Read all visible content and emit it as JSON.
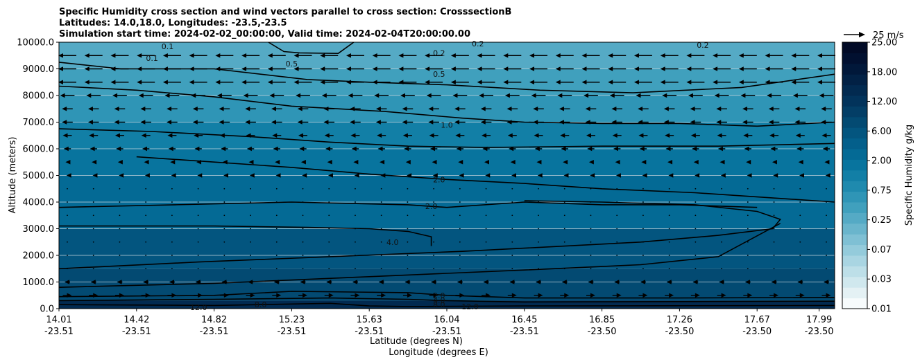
{
  "chart_data": {
    "type": "heatmap",
    "title_lines": [
      "Specific Humidity cross section and wind vectors parallel to cross section: CrosssectionB",
      "Latitudes: 14.0,18.0, Longitudes: -23.5,-23.5",
      "Simulation start time: 2024-02-02_00:00:00, Valid time: 2024-02-04T20:00:00.00"
    ],
    "ylabel": "Altitude (meters)",
    "xlabel_lat": "Latitude (degrees N)",
    "xlabel_lon": "Longitude (degrees E)",
    "ylim": [
      0,
      10000
    ],
    "y_ticks": [
      "0.0",
      "1000.0",
      "2000.0",
      "3000.0",
      "4000.0",
      "5000.0",
      "6000.0",
      "7000.0",
      "8000.0",
      "9000.0",
      "10000.0"
    ],
    "x_ticks": [
      {
        "lat": "14.01",
        "lon": "-23.51",
        "frac": 0.0
      },
      {
        "lat": "14.42",
        "lon": "-23.51",
        "frac": 0.1
      },
      {
        "lat": "14.82",
        "lon": "-23.51",
        "frac": 0.2
      },
      {
        "lat": "15.23",
        "lon": "-23.51",
        "frac": 0.3
      },
      {
        "lat": "15.63",
        "lon": "-23.51",
        "frac": 0.4
      },
      {
        "lat": "16.04",
        "lon": "-23.51",
        "frac": 0.5
      },
      {
        "lat": "16.45",
        "lon": "-23.51",
        "frac": 0.6
      },
      {
        "lat": "16.85",
        "lon": "-23.50",
        "frac": 0.7
      },
      {
        "lat": "17.26",
        "lon": "-23.50",
        "frac": 0.8
      },
      {
        "lat": "17.67",
        "lon": "-23.50",
        "frac": 0.9
      },
      {
        "lat": "17.99",
        "lon": "-23.50",
        "frac": 0.98
      }
    ],
    "colorbar": {
      "label": "Specific Humidity g/kg",
      "levels": [
        "0.01",
        "0.03",
        "0.07",
        "0.25",
        "0.75",
        "2.00",
        "6.00",
        "12.00",
        "18.00",
        "25.00"
      ],
      "colors": [
        "#f7fbfc",
        "#e4f1f4",
        "#d0e8ee",
        "#bddfe8",
        "#a9d5e2",
        "#94cbdb",
        "#7fc0d4",
        "#6ab5cc",
        "#55aac5",
        "#40a0bd",
        "#2f95b6",
        "#1f8aae",
        "#127fa6",
        "#08749e",
        "#046a95",
        "#035f8b",
        "#03557f",
        "#034a72",
        "#033e66",
        "#02335b",
        "#022a50",
        "#022145",
        "#01183a",
        "#011030",
        "#010a26"
      ]
    },
    "wind_key": {
      "label": "25 m/s",
      "value": 25
    },
    "humidity_bands": [
      {
        "alt_from": 0,
        "alt_to": 300,
        "q": 15.0
      },
      {
        "alt_from": 300,
        "alt_to": 1500,
        "q": 7.0
      },
      {
        "alt_from": 1500,
        "alt_to": 3000,
        "q": 5.0
      },
      {
        "alt_from": 3000,
        "alt_to": 4000,
        "q": 3.0
      },
      {
        "alt_from": 4000,
        "alt_to": 5000,
        "q": 2.2
      },
      {
        "alt_from": 5000,
        "alt_to": 6000,
        "q": 1.6
      },
      {
        "alt_from": 6000,
        "alt_to": 7000,
        "q": 1.2
      },
      {
        "alt_from": 7000,
        "alt_to": 8000,
        "q": 0.7
      },
      {
        "alt_from": 8000,
        "alt_to": 9000,
        "q": 0.4
      },
      {
        "alt_from": 9000,
        "alt_to": 10000,
        "q": 0.2
      }
    ],
    "contours": [
      {
        "level": "0.1",
        "points": [
          [
            0.27,
            10000
          ],
          [
            0.29,
            9650
          ],
          [
            0.31,
            9600
          ],
          [
            0.36,
            9580
          ],
          [
            0.38,
            10000
          ]
        ]
      },
      {
        "level": "0.2",
        "points": [
          [
            0.0,
            9250
          ],
          [
            0.08,
            9000
          ],
          [
            0.2,
            9000
          ],
          [
            0.32,
            8600
          ],
          [
            0.4,
            8500
          ],
          [
            0.5,
            8400
          ],
          [
            0.62,
            8200
          ],
          [
            0.74,
            8100
          ],
          [
            0.88,
            8300
          ],
          [
            1.0,
            8800
          ]
        ]
      },
      {
        "level": "0.5",
        "points": [
          [
            0.0,
            8350
          ],
          [
            0.1,
            8200
          ],
          [
            0.2,
            7950
          ],
          [
            0.3,
            7600
          ],
          [
            0.42,
            7400
          ],
          [
            0.52,
            7150
          ],
          [
            0.6,
            7000
          ],
          [
            0.7,
            6950
          ],
          [
            0.8,
            6950
          ],
          [
            0.9,
            6850
          ],
          [
            1.0,
            7000
          ]
        ]
      },
      {
        "level": "1.0",
        "points": [
          [
            0.0,
            6750
          ],
          [
            0.12,
            6650
          ],
          [
            0.25,
            6450
          ],
          [
            0.35,
            6250
          ],
          [
            0.45,
            6100
          ],
          [
            0.55,
            6050
          ],
          [
            0.7,
            6100
          ],
          [
            0.85,
            6100
          ],
          [
            1.0,
            6200
          ]
        ]
      },
      {
        "level": "2.0",
        "points": [
          [
            0.1,
            5700
          ],
          [
            0.2,
            5500
          ],
          [
            0.3,
            5300
          ],
          [
            0.4,
            5050
          ],
          [
            0.5,
            4850
          ],
          [
            0.6,
            4700
          ],
          [
            0.7,
            4500
          ],
          [
            0.82,
            4350
          ],
          [
            1.0,
            4000
          ]
        ]
      },
      {
        "level": "2.0",
        "points": [
          [
            0.0,
            3800
          ],
          [
            0.15,
            3900
          ],
          [
            0.3,
            4000
          ],
          [
            0.45,
            3900
          ],
          [
            0.5,
            3800
          ],
          [
            0.6,
            4000
          ],
          [
            0.7,
            3900
          ],
          [
            0.8,
            3900
          ],
          [
            0.9,
            3800
          ]
        ]
      },
      {
        "level": "4.0",
        "points": [
          [
            0.0,
            3100
          ],
          [
            0.2,
            3100
          ],
          [
            0.32,
            3050
          ],
          [
            0.4,
            3000
          ],
          [
            0.45,
            2900
          ],
          [
            0.48,
            2700
          ],
          [
            0.48,
            2350
          ]
        ]
      },
      {
        "level": "4.0",
        "points": [
          [
            0.0,
            1500
          ],
          [
            0.18,
            1750
          ],
          [
            0.35,
            1950
          ],
          [
            0.52,
            2150
          ],
          [
            0.62,
            2300
          ],
          [
            0.75,
            2500
          ],
          [
            0.85,
            2750
          ],
          [
            0.92,
            3000
          ],
          [
            0.93,
            3350
          ],
          [
            0.9,
            3650
          ],
          [
            0.82,
            3900
          ],
          [
            0.7,
            4000
          ],
          [
            0.6,
            4050
          ]
        ]
      },
      {
        "level": "4.0",
        "points": [
          [
            0.0,
            800
          ],
          [
            0.2,
            950
          ],
          [
            0.4,
            1200
          ],
          [
            0.6,
            1450
          ],
          [
            0.75,
            1650
          ],
          [
            0.85,
            1950
          ],
          [
            0.93,
            3200
          ]
        ]
      },
      {
        "level": "2.0",
        "points": [
          [
            0.0,
            450
          ],
          [
            0.2,
            500
          ],
          [
            0.3,
            650
          ],
          [
            0.45,
            600
          ],
          [
            0.5,
            500
          ],
          [
            0.6,
            400
          ],
          [
            0.8,
            400
          ],
          [
            1.0,
            420
          ]
        ]
      },
      {
        "level": "8.0",
        "points": [
          [
            0.0,
            300
          ],
          [
            0.2,
            350
          ],
          [
            0.35,
            400
          ],
          [
            0.45,
            350
          ],
          [
            0.5,
            300
          ],
          [
            0.6,
            250
          ],
          [
            1.0,
            280
          ]
        ]
      },
      {
        "level": "12.0",
        "points": [
          [
            0.0,
            150
          ],
          [
            0.2,
            120
          ],
          [
            0.35,
            200
          ],
          [
            0.4,
            100
          ],
          [
            0.45,
            80
          ],
          [
            0.6,
            100
          ],
          [
            1.0,
            120
          ]
        ]
      }
    ],
    "contour_labels": [
      {
        "text": "0.1",
        "frac": 0.12,
        "alt": 9400
      },
      {
        "text": "0.1",
        "frac": 0.14,
        "alt": 9850
      },
      {
        "text": "0.5",
        "frac": 0.3,
        "alt": 9200
      },
      {
        "text": "0.2",
        "frac": 0.49,
        "alt": 9600
      },
      {
        "text": "0.5",
        "frac": 0.49,
        "alt": 8800
      },
      {
        "text": "0.2",
        "frac": 0.54,
        "alt": 9950
      },
      {
        "text": "0.2",
        "frac": 0.83,
        "alt": 9900
      },
      {
        "text": "1.0",
        "frac": 0.5,
        "alt": 6900
      },
      {
        "text": "2.0",
        "frac": 0.49,
        "alt": 4850
      },
      {
        "text": "2.0",
        "frac": 0.48,
        "alt": 3850
      },
      {
        "text": "4.0",
        "frac": 0.43,
        "alt": 2500
      },
      {
        "text": "2.0",
        "frac": 0.49,
        "alt": 500
      },
      {
        "text": "4.0",
        "frac": 0.49,
        "alt": 330
      },
      {
        "text": "8.0",
        "frac": 0.49,
        "alt": 150
      },
      {
        "text": "8.0",
        "frac": 0.26,
        "alt": 150
      },
      {
        "text": "12.0",
        "frac": 0.18,
        "alt": 50
      },
      {
        "text": "12.0",
        "frac": 0.53,
        "alt": 80
      }
    ],
    "wind_rows": [
      {
        "alt": 9500,
        "u": -1.0
      },
      {
        "alt": 9000,
        "u": -1.0
      },
      {
        "alt": 8500,
        "u": -1.0
      },
      {
        "alt": 8000,
        "u": -0.8
      },
      {
        "alt": 7500,
        "u": -0.6
      },
      {
        "alt": 7000,
        "u": -0.6
      },
      {
        "alt": 6500,
        "u": -0.5
      },
      {
        "alt": 6000,
        "u": -0.4
      },
      {
        "alt": 5500,
        "u": -0.2
      },
      {
        "alt": 5000,
        "u": -0.1
      },
      {
        "alt": 4500,
        "u": -0.05
      },
      {
        "alt": 4000,
        "u": -0.05
      },
      {
        "alt": 3500,
        "u": -0.03
      },
      {
        "alt": 3000,
        "u": -0.02
      },
      {
        "alt": 2500,
        "u": -0.02
      },
      {
        "alt": 2000,
        "u": -0.02
      },
      {
        "alt": 1500,
        "u": -0.02
      },
      {
        "alt": 1000,
        "u": -0.3
      },
      {
        "alt": 500,
        "u": 0.5
      }
    ]
  }
}
